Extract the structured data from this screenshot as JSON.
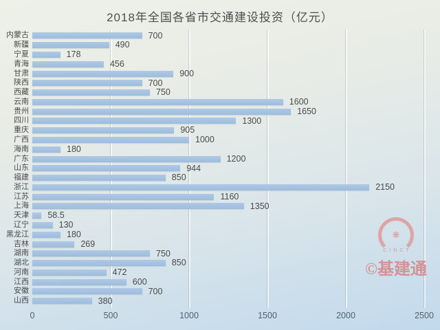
{
  "chart_data": {
    "type": "bar",
    "orientation": "horizontal",
    "title": "2018年全国各省市交通建设投资（亿元）",
    "categories": [
      "内蒙古",
      "新疆",
      "宁夏",
      "青海",
      "甘肃",
      "陕西",
      "西藏",
      "云南",
      "贵州",
      "四川",
      "重庆",
      "广西",
      "海南",
      "广东",
      "山东",
      "福建",
      "浙江",
      "江苏",
      "上海",
      "天津",
      "辽宁",
      "黑龙江",
      "吉林",
      "湖南",
      "湖北",
      "河南",
      "江西",
      "安徽",
      "山西"
    ],
    "values": [
      700,
      490,
      178,
      456,
      900,
      700,
      750,
      1600,
      1650,
      1300,
      905,
      1000,
      180,
      1200,
      944,
      850,
      2150,
      1160,
      1350,
      58.5,
      130,
      180,
      269,
      750,
      850,
      472,
      600,
      700,
      380
    ],
    "xlabel": "",
    "ylabel": "",
    "xlim": [
      0,
      2500
    ],
    "x_ticks": [
      0,
      500,
      1000,
      1500,
      2000,
      2500
    ],
    "grid": true,
    "legend": "none",
    "bar_color": "#a4c1e1"
  },
  "watermark": {
    "logo_text": "CINCT",
    "flower_glyph": "❋",
    "label": "©基建通",
    "color": "#d58584"
  },
  "colors": {
    "background_top": "#eef1e8",
    "background_bottom": "#c2d9ec",
    "bar": "#a4c1e1",
    "text": "#4a4a4a",
    "axis_text": "#51606d"
  }
}
